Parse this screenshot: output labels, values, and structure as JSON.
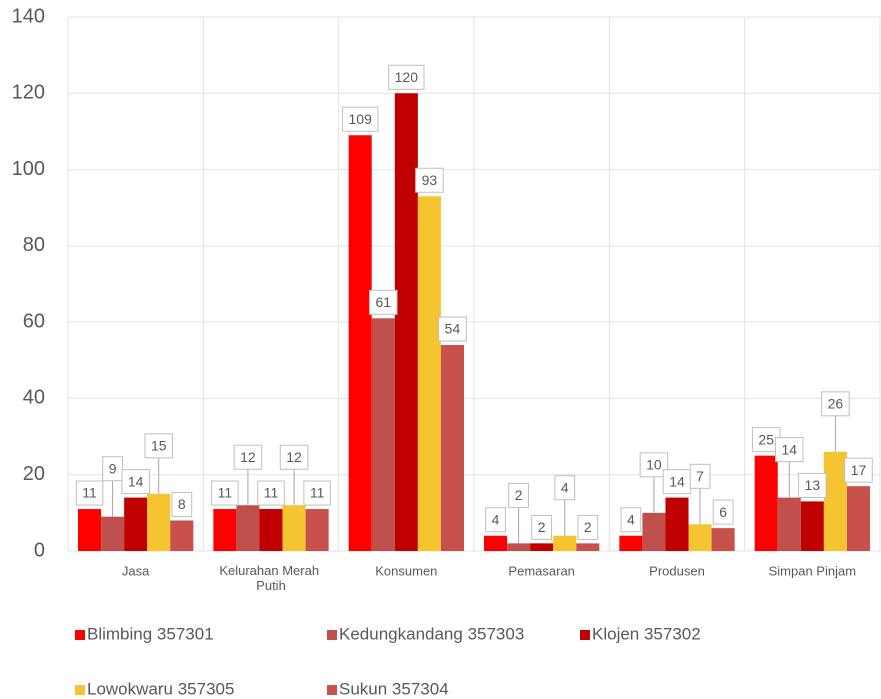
{
  "chart_data": {
    "type": "bar",
    "categories": [
      "Jasa",
      "Kelurahan Merah Putih",
      "Konsumen",
      "Pemasaran",
      "Produsen",
      "Simpan Pinjam"
    ],
    "series": [
      {
        "name": "Blimbing 357301",
        "color": "#ff0000",
        "values": [
          11,
          11,
          109,
          4,
          4,
          25
        ]
      },
      {
        "name": "Kedungkandang 357303",
        "color": "#c0504d",
        "values": [
          9,
          12,
          61,
          2,
          10,
          14
        ]
      },
      {
        "name": "Klojen 357302",
        "color": "#c00000",
        "values": [
          14,
          11,
          120,
          2,
          14,
          13
        ]
      },
      {
        "name": "Lowokwaru 357305",
        "color": "#f5c431",
        "values": [
          15,
          12,
          93,
          4,
          7,
          26
        ]
      },
      {
        "name": "Sukun 357304",
        "color": "#c8524b",
        "values": [
          8,
          11,
          54,
          2,
          6,
          17
        ]
      }
    ],
    "ylim": [
      0,
      140
    ],
    "yticks": [
      0,
      20,
      40,
      60,
      80,
      100,
      120,
      140
    ],
    "grid": true,
    "legend": "bottom",
    "data_labels": true
  }
}
